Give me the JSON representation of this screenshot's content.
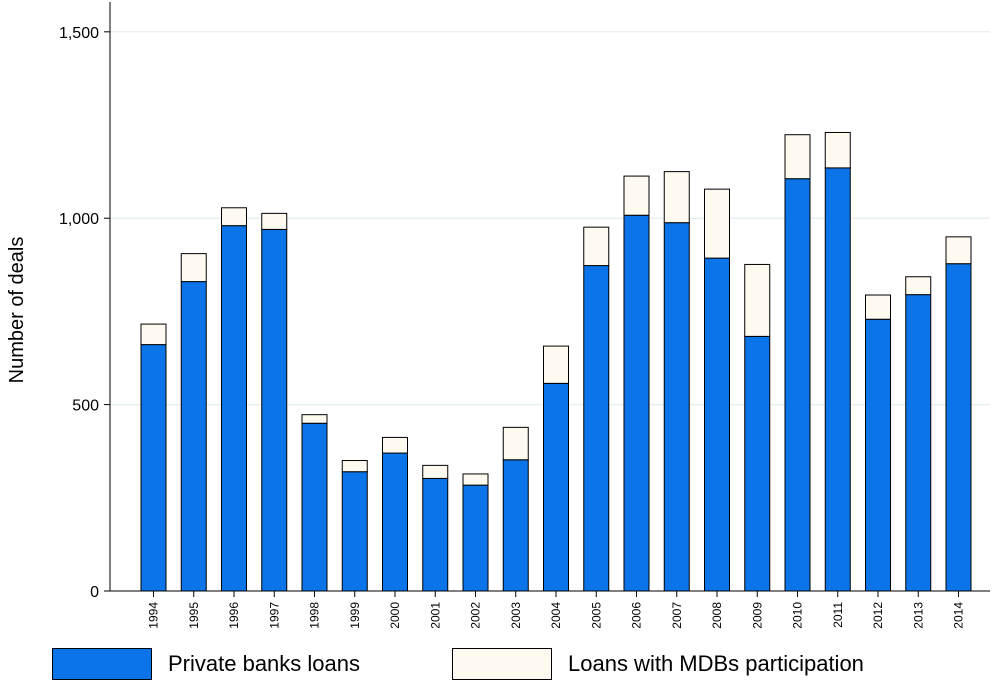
{
  "chart_data": {
    "type": "bar",
    "stacked": true,
    "title": "",
    "xlabel": "",
    "ylabel": "Number of deals",
    "ylim": [
      0,
      1580
    ],
    "yticks": [
      0,
      500,
      1000,
      1500
    ],
    "ytick_labels": [
      "0",
      "500",
      "1,000",
      "1,500"
    ],
    "grid": true,
    "legend_position": "bottom",
    "categories": [
      "1994",
      "1995",
      "1996",
      "1997",
      "1998",
      "1999",
      "2000",
      "2001",
      "2002",
      "2003",
      "2004",
      "2005",
      "2006",
      "2007",
      "2008",
      "2009",
      "2010",
      "2011",
      "2012",
      "2013",
      "2014"
    ],
    "series": [
      {
        "name": "Private banks loans",
        "color": "#0a74e8",
        "values": [
          661,
          830,
          980,
          970,
          450,
          320,
          370,
          302,
          284,
          352,
          557,
          873,
          1008,
          988,
          893,
          683,
          1106,
          1135,
          729,
          795,
          878
        ]
      },
      {
        "name": "Loans with MDBs participation",
        "color": "#fffaf0",
        "values": [
          55,
          75,
          48,
          43,
          23,
          30,
          42,
          35,
          30,
          87,
          100,
          103,
          105,
          137,
          185,
          193,
          118,
          95,
          65,
          48,
          72
        ]
      }
    ]
  }
}
